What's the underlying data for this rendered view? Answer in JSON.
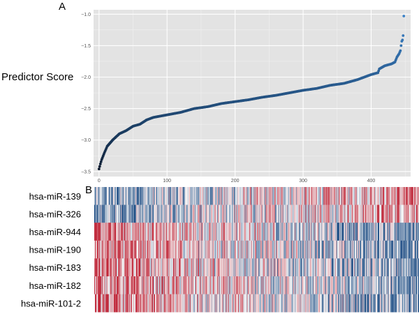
{
  "chart_data": [
    {
      "type": "scatter",
      "panel_label": "A",
      "ylabel": "Predictor Score",
      "xlabel": "",
      "xlim": [
        -8,
        458
      ],
      "ylim": [
        -3.58,
        -0.93
      ],
      "x_ticks": [
        "0",
        "100",
        "200",
        "300",
        "400"
      ],
      "y_ticks": [
        "-1.0",
        "-1.5",
        "-2.0",
        "-2.5",
        "-3.0",
        "-3.5"
      ],
      "grid": true,
      "background": "#e3e3e3",
      "color_low": "#0b1a2e",
      "color_high": "#3b82c8",
      "points": [
        [
          0,
          -3.46
        ],
        [
          2,
          -3.38
        ],
        [
          4,
          -3.31
        ],
        [
          8,
          -3.2
        ],
        [
          12,
          -3.1
        ],
        [
          20,
          -3.0
        ],
        [
          30,
          -2.9
        ],
        [
          40,
          -2.85
        ],
        [
          50,
          -2.78
        ],
        [
          60,
          -2.75
        ],
        [
          70,
          -2.68
        ],
        [
          80,
          -2.64
        ],
        [
          100,
          -2.6
        ],
        [
          120,
          -2.56
        ],
        [
          140,
          -2.5
        ],
        [
          160,
          -2.47
        ],
        [
          180,
          -2.42
        ],
        [
          200,
          -2.39
        ],
        [
          220,
          -2.36
        ],
        [
          240,
          -2.32
        ],
        [
          260,
          -2.29
        ],
        [
          280,
          -2.25
        ],
        [
          300,
          -2.21
        ],
        [
          320,
          -2.18
        ],
        [
          340,
          -2.13
        ],
        [
          360,
          -2.1
        ],
        [
          380,
          -2.04
        ],
        [
          400,
          -1.96
        ],
        [
          410,
          -1.93
        ],
        [
          412,
          -1.87
        ],
        [
          420,
          -1.82
        ],
        [
          430,
          -1.79
        ],
        [
          435,
          -1.76
        ],
        [
          438,
          -1.68
        ],
        [
          441,
          -1.63
        ],
        [
          443,
          -1.58
        ],
        [
          444,
          -1.5
        ],
        [
          445,
          -1.43
        ],
        [
          446,
          -1.41
        ],
        [
          447,
          -1.34
        ],
        [
          448,
          -1.03
        ]
      ]
    },
    {
      "type": "heatmap",
      "panel_label": "B",
      "rows": [
        {
          "label": "hsa-miR-139",
          "trend": "blue-to-red"
        },
        {
          "label": "hsa-miR-326",
          "trend": "blue-to-red"
        },
        {
          "label": "hsa-miR-944",
          "trend": "red-to-blue"
        },
        {
          "label": "hsa-miR-190",
          "trend": "red-to-blue"
        },
        {
          "label": "hsa-miR-183",
          "trend": "red-to-blue"
        },
        {
          "label": "hsa-miR-182",
          "trend": "red-to-blue"
        },
        {
          "label": "hsa-miR-101-2",
          "trend": "red-to-blue"
        }
      ],
      "columns": 449,
      "color_low": "#1f4e85",
      "color_mid": "#f7f7f7",
      "color_high": "#c0283a"
    }
  ]
}
